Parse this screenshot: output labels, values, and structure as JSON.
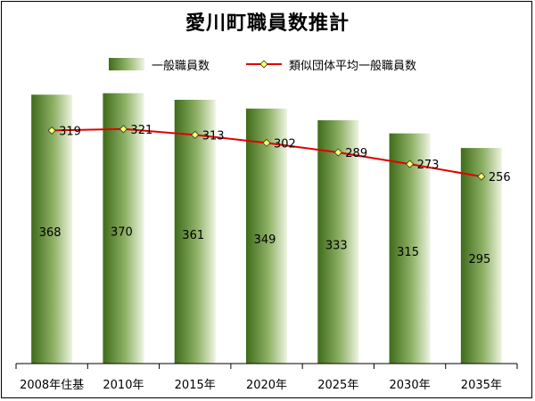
{
  "chart_data": {
    "type": "bar",
    "title": "愛川町職員数推計",
    "categories": [
      "2008年住基",
      "2010年",
      "2015年",
      "2020年",
      "2025年",
      "2030年",
      "2035年"
    ],
    "series": [
      {
        "name": "一般職員数",
        "type": "bar",
        "values": [
          368,
          370,
          361,
          349,
          333,
          315,
          295
        ]
      },
      {
        "name": "類似団体平均一般職員数",
        "type": "line",
        "values": [
          319,
          321,
          313,
          302,
          289,
          273,
          256
        ]
      }
    ],
    "ylim": [
      0,
      400
    ],
    "grid": false,
    "legend": "top",
    "colors": {
      "bar_dark": "#3f6b1a",
      "bar_mid": "#8fb267",
      "bar_light": "#eef4e2",
      "line": "#e00000",
      "marker": "#ffff66"
    }
  }
}
